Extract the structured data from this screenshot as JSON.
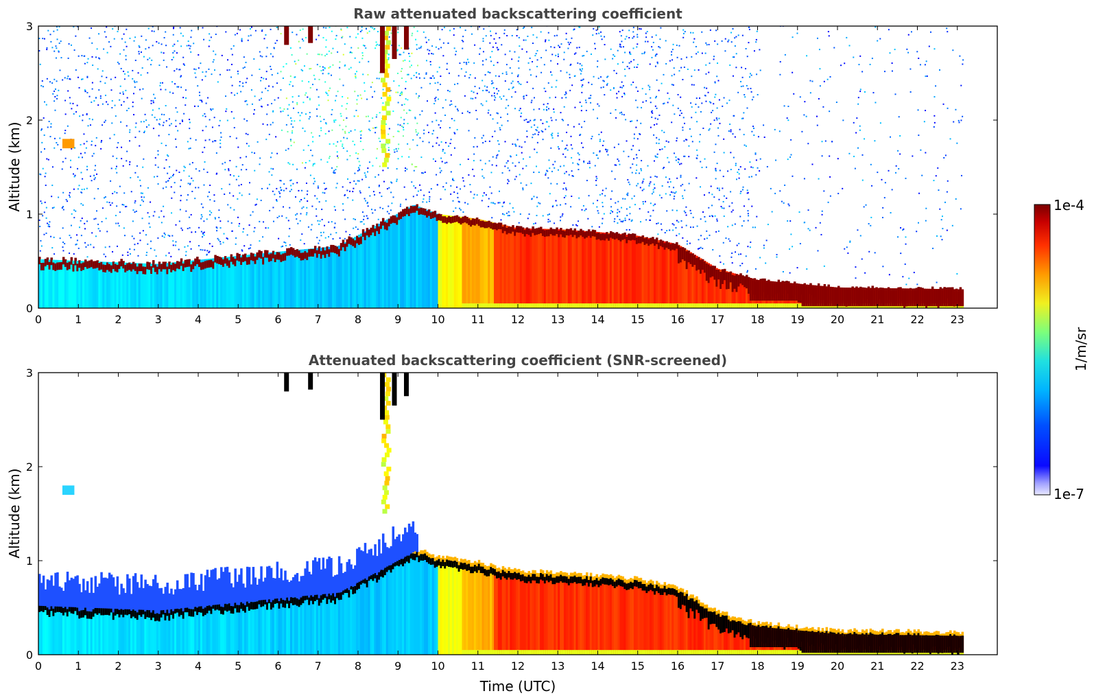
{
  "chart_data": [
    {
      "type": "heatmap",
      "title": "Raw attenuated backscattering coefficient",
      "xlabel": "",
      "ylabel": "Altitude (km)",
      "xlim": [
        0,
        24
      ],
      "ylim": [
        0,
        3
      ],
      "x_ticks": [
        "0",
        "1",
        "2",
        "3",
        "4",
        "5",
        "6",
        "7",
        "8",
        "9",
        "10",
        "11",
        "12",
        "13",
        "14",
        "15",
        "16",
        "17",
        "18",
        "19",
        "20",
        "21",
        "22",
        "23"
      ],
      "y_ticks": [
        "0",
        "1",
        "2",
        "3"
      ],
      "data_end_time": 23.15,
      "screened": false,
      "features": {
        "boundary_layer_top_km": [
          {
            "t": 0,
            "z": 0.52
          },
          {
            "t": 3,
            "z": 0.47
          },
          {
            "t": 6,
            "z": 0.6
          },
          {
            "t": 7.5,
            "z": 0.66
          },
          {
            "t": 9.4,
            "z": 1.1
          },
          {
            "t": 10,
            "z": 1.0
          },
          {
            "t": 11,
            "z": 0.95
          },
          {
            "t": 12,
            "z": 0.85
          },
          {
            "t": 13,
            "z": 0.84
          },
          {
            "t": 14,
            "z": 0.81
          },
          {
            "t": 15,
            "z": 0.77
          },
          {
            "t": 16,
            "z": 0.68
          },
          {
            "t": 17,
            "z": 0.42
          },
          {
            "t": 18,
            "z": 0.3
          },
          {
            "t": 20,
            "z": 0.22
          },
          {
            "t": 23.15,
            "z": 0.2
          }
        ],
        "elevated_layer": {
          "t_start": 0.6,
          "t_end": 0.9,
          "z": 1.75
        },
        "virga_plume": {
          "t_start": 8.4,
          "t_end": 9.1,
          "z_bottom": 1.5
        }
      }
    },
    {
      "type": "heatmap",
      "title": "Attenuated backscattering coefficient (SNR-screened)",
      "xlabel": "Time (UTC)",
      "ylabel": "Altitude (km)",
      "xlim": [
        0,
        24
      ],
      "ylim": [
        0,
        3
      ],
      "x_ticks": [
        "0",
        "1",
        "2",
        "3",
        "4",
        "5",
        "6",
        "7",
        "8",
        "9",
        "10",
        "11",
        "12",
        "13",
        "14",
        "15",
        "16",
        "17",
        "18",
        "19",
        "20",
        "21",
        "22",
        "23"
      ],
      "y_ticks": [
        "0",
        "1",
        "2",
        "3"
      ],
      "data_end_time": 23.15,
      "screened": true
    }
  ],
  "colorbar": {
    "label": "1/m/sr",
    "max_label": "1e-4",
    "min_label": "1e-7",
    "scale": "log",
    "colormap": "jet"
  },
  "colors": {
    "background": "#ffffff",
    "title_color": "#444444",
    "low_blue": "#1e50ff",
    "cyan": "#2ad4ff",
    "yellow": "#f4f021",
    "orange": "#ff6a10",
    "dark_red": "#800000"
  }
}
